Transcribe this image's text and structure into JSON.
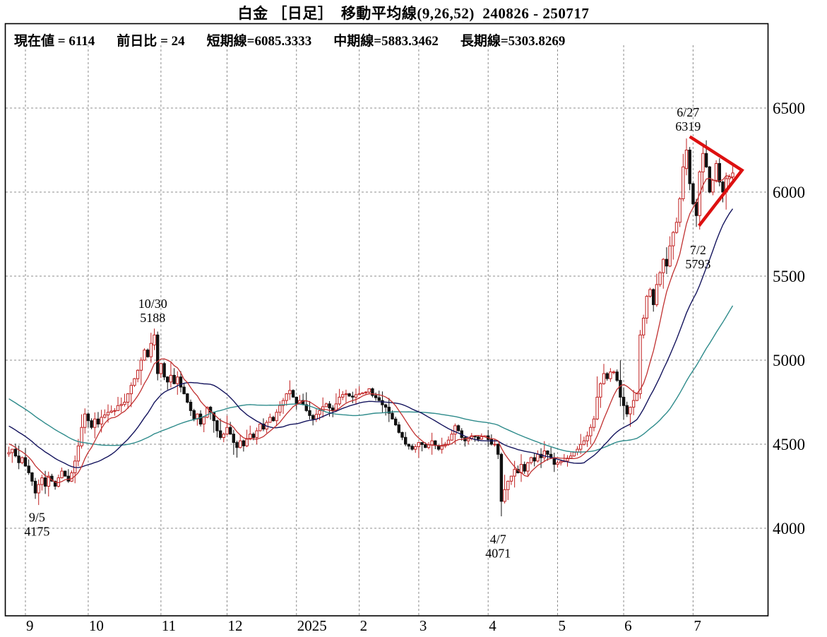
{
  "title": "白金 ［日足］  移動平均線(9,26,52)  240826 - 250717",
  "header": {
    "items": [
      {
        "label": "現在値",
        "eq": " = ",
        "value": "6114"
      },
      {
        "label": "前日比",
        "eq": " = ",
        "value": "24"
      },
      {
        "label": "短期線",
        "eq": "=",
        "value": "6085.3333"
      },
      {
        "label": "中期線",
        "eq": "=",
        "value": "5883.3462"
      },
      {
        "label": "長期線",
        "eq": "=",
        "value": "5303.8269"
      }
    ]
  },
  "colors": {
    "up_candle": "#c02020",
    "down_candle": "#111111",
    "ma_short": "#c03030",
    "ma_mid": "#15155e",
    "ma_long": "#2e8b8b",
    "pennant": "#dd1010",
    "grid": "#8c8c8c",
    "frame": "#000000",
    "background": "#ffffff"
  },
  "chart_data": {
    "type": "candlestick",
    "instrument": "白金",
    "timeframe": "日足",
    "ma_periods": [
      9,
      26,
      52
    ],
    "date_range": "240826 - 250717",
    "current_value": 6114,
    "previous_day_change": 24,
    "ma_final_values": {
      "short": 6085.3333,
      "mid": 5883.3462,
      "long": 5303.8269
    },
    "y_axis": {
      "ticks": [
        6500,
        6000,
        5500,
        5000,
        4500,
        4000
      ],
      "grid": "dashed",
      "side": "right"
    },
    "x_axis": {
      "tick_labels": [
        "9",
        "10",
        "11",
        "12",
        "2025",
        "2",
        "3",
        "4",
        "5",
        "6",
        "7"
      ],
      "tick_day_indices": [
        5,
        24,
        46,
        66,
        87,
        106,
        124,
        145,
        166,
        186,
        207
      ],
      "grid": "dashed"
    },
    "total_days": 220,
    "close_waypoints": [
      [
        0,
        4450
      ],
      [
        1,
        4470
      ],
      [
        2,
        4430
      ],
      [
        3,
        4390
      ],
      [
        4,
        4420
      ],
      [
        5,
        4370
      ],
      [
        6,
        4330
      ],
      [
        7,
        4280
      ],
      [
        8,
        4210
      ],
      [
        9,
        4260
      ],
      [
        10,
        4300
      ],
      [
        11,
        4250
      ],
      [
        12,
        4310
      ],
      [
        13,
        4280
      ],
      [
        14,
        4250
      ],
      [
        15,
        4300
      ],
      [
        16,
        4340
      ],
      [
        17,
        4310
      ],
      [
        18,
        4280
      ],
      [
        19,
        4330
      ],
      [
        20,
        4400
      ],
      [
        21,
        4490
      ],
      [
        22,
        4600
      ],
      [
        23,
        4680
      ],
      [
        24,
        4640
      ],
      [
        25,
        4600
      ],
      [
        26,
        4650
      ],
      [
        27,
        4620
      ],
      [
        28,
        4660
      ],
      [
        30,
        4690
      ],
      [
        32,
        4700
      ],
      [
        33,
        4730
      ],
      [
        35,
        4750
      ],
      [
        36,
        4800
      ],
      [
        37,
        4850
      ],
      [
        38,
        4890
      ],
      [
        39,
        4940
      ],
      [
        40,
        5000
      ],
      [
        41,
        5060
      ],
      [
        42,
        5020
      ],
      [
        43,
        5100
      ],
      [
        44,
        5150
      ],
      [
        45,
        4920
      ],
      [
        46,
        4980
      ],
      [
        47,
        4900
      ],
      [
        48,
        4870
      ],
      [
        49,
        4910
      ],
      [
        50,
        4860
      ],
      [
        51,
        4900
      ],
      [
        52,
        4840
      ],
      [
        53,
        4800
      ],
      [
        54,
        4750
      ],
      [
        55,
        4700
      ],
      [
        56,
        4650
      ],
      [
        57,
        4680
      ],
      [
        58,
        4620
      ],
      [
        59,
        4660
      ],
      [
        60,
        4720
      ],
      [
        61,
        4690
      ],
      [
        62,
        4640
      ],
      [
        63,
        4580
      ],
      [
        64,
        4540
      ],
      [
        65,
        4560
      ],
      [
        66,
        4600
      ],
      [
        67,
        4560
      ],
      [
        68,
        4510
      ],
      [
        69,
        4480
      ],
      [
        70,
        4520
      ],
      [
        71,
        4490
      ],
      [
        72,
        4530
      ],
      [
        73,
        4560
      ],
      [
        74,
        4540
      ],
      [
        75,
        4580
      ],
      [
        76,
        4620
      ],
      [
        77,
        4590
      ],
      [
        78,
        4630
      ],
      [
        79,
        4660
      ],
      [
        80,
        4640
      ],
      [
        81,
        4690
      ],
      [
        82,
        4730
      ],
      [
        83,
        4760
      ],
      [
        84,
        4800
      ],
      [
        85,
        4820
      ],
      [
        86,
        4780
      ],
      [
        87,
        4740
      ],
      [
        88,
        4760
      ],
      [
        90,
        4700
      ],
      [
        92,
        4650
      ],
      [
        94,
        4700
      ],
      [
        96,
        4740
      ],
      [
        98,
        4700
      ],
      [
        100,
        4780
      ],
      [
        102,
        4800
      ],
      [
        104,
        4780
      ],
      [
        106,
        4800
      ],
      [
        108,
        4810
      ],
      [
        109,
        4830
      ],
      [
        110,
        4790
      ],
      [
        112,
        4760
      ],
      [
        114,
        4720
      ],
      [
        116,
        4650
      ],
      [
        118,
        4570
      ],
      [
        120,
        4500
      ],
      [
        122,
        4470
      ],
      [
        124,
        4510
      ],
      [
        126,
        4480
      ],
      [
        128,
        4520
      ],
      [
        130,
        4470
      ],
      [
        132,
        4500
      ],
      [
        134,
        4560
      ],
      [
        135,
        4610
      ],
      [
        136,
        4580
      ],
      [
        137,
        4540
      ],
      [
        138,
        4520
      ],
      [
        140,
        4550
      ],
      [
        142,
        4530
      ],
      [
        144,
        4550
      ],
      [
        146,
        4500
      ],
      [
        147,
        4500
      ],
      [
        148,
        4440
      ],
      [
        149,
        4160
      ],
      [
        150,
        4230
      ],
      [
        151,
        4280
      ],
      [
        152,
        4310
      ],
      [
        153,
        4350
      ],
      [
        154,
        4330
      ],
      [
        155,
        4380
      ],
      [
        156,
        4340
      ],
      [
        157,
        4390
      ],
      [
        158,
        4420
      ],
      [
        159,
        4400
      ],
      [
        160,
        4440
      ],
      [
        161,
        4420
      ],
      [
        162,
        4460
      ],
      [
        163,
        4440
      ],
      [
        164,
        4420
      ],
      [
        165,
        4380
      ],
      [
        166,
        4390
      ],
      [
        168,
        4400
      ],
      [
        170,
        4430
      ],
      [
        172,
        4470
      ],
      [
        174,
        4520
      ],
      [
        175,
        4550
      ],
      [
        176,
        4600
      ],
      [
        177,
        4650
      ],
      [
        178,
        4780
      ],
      [
        179,
        4860
      ],
      [
        180,
        4920
      ],
      [
        181,
        4890
      ],
      [
        182,
        4930
      ],
      [
        183,
        4930
      ],
      [
        184,
        4880
      ],
      [
        185,
        4780
      ],
      [
        186,
        4730
      ],
      [
        187,
        4680
      ],
      [
        188,
        4720
      ],
      [
        189,
        4760
      ],
      [
        190,
        4800
      ],
      [
        191,
        5150
      ],
      [
        192,
        5250
      ],
      [
        193,
        5380
      ],
      [
        194,
        5420
      ],
      [
        195,
        5330
      ],
      [
        196,
        5450
      ],
      [
        197,
        5520
      ],
      [
        198,
        5600
      ],
      [
        199,
        5560
      ],
      [
        200,
        5680
      ],
      [
        201,
        5760
      ],
      [
        202,
        5820
      ],
      [
        203,
        5960
      ],
      [
        204,
        6150
      ],
      [
        205,
        6250
      ],
      [
        206,
        6050
      ],
      [
        207,
        5930
      ],
      [
        208,
        5860
      ],
      [
        209,
        6120
      ],
      [
        210,
        6230
      ],
      [
        211,
        6150
      ],
      [
        212,
        6000
      ],
      [
        213,
        6070
      ],
      [
        214,
        6170
      ],
      [
        215,
        6060
      ],
      [
        216,
        6000
      ],
      [
        217,
        6080
      ],
      [
        218,
        6090
      ],
      [
        219,
        6114
      ]
    ],
    "key_candles": {
      "8": {
        "open": 4280,
        "close": 4210,
        "high": 4300,
        "low": 4175
      },
      "44": {
        "open": 5090,
        "close": 5150,
        "high": 5188,
        "low": 5060
      },
      "45": {
        "open": 5150,
        "close": 4920,
        "high": 5170,
        "low": 4880
      },
      "149": {
        "open": 4440,
        "close": 4160,
        "high": 4450,
        "low": 4071
      },
      "191": {
        "open": 4800,
        "close": 5150,
        "high": 5180,
        "low": 4770
      },
      "205": {
        "open": 6140,
        "close": 6250,
        "high": 6319,
        "low": 6100
      },
      "208": {
        "open": 5940,
        "close": 5860,
        "high": 5960,
        "low": 5793
      },
      "219": {
        "open": 6090,
        "close": 6114,
        "high": 6155,
        "low": 6050
      }
    },
    "annotations": [
      {
        "lines": [
          "9/5",
          "4175"
        ],
        "day": 8.5,
        "baseline_price": 4040,
        "position": "below-low"
      },
      {
        "lines": [
          "10/30",
          "5188"
        ],
        "day": 43.5,
        "baseline_price": 5310,
        "position": "above-high"
      },
      {
        "lines": [
          "4/7",
          "4071"
        ],
        "day": 148,
        "baseline_price": 3910,
        "position": "below-low"
      },
      {
        "lines": [
          "6/27",
          "6319"
        ],
        "day": 205.5,
        "baseline_price": 6450,
        "position": "above-high"
      },
      {
        "lines": [
          "7/2",
          "5793"
        ],
        "day": 208.5,
        "baseline_price": 5630,
        "position": "below-low"
      }
    ],
    "pennant_day_price": [
      [
        206.0,
        6330
      ],
      [
        221.8,
        6130
      ],
      [
        208.8,
        5800
      ]
    ],
    "ma_warmup": {
      "start": 5100,
      "end": 4465,
      "days": 52
    }
  }
}
